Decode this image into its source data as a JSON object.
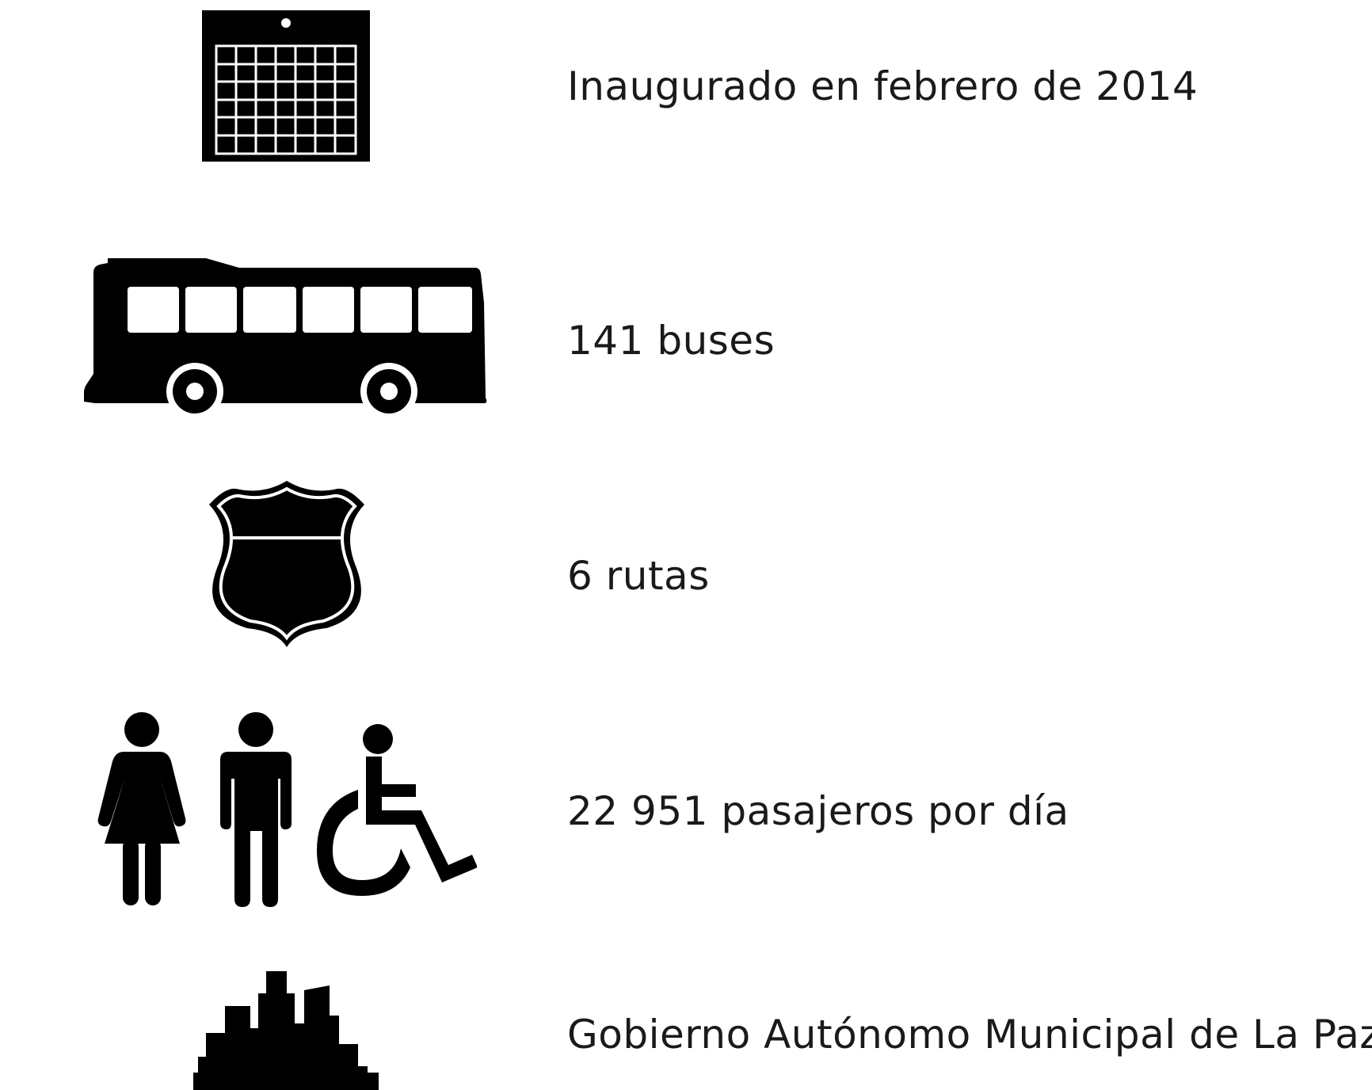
{
  "colors": {
    "background": "#ffffff",
    "icon": "#000000",
    "text": "#1a1a1a"
  },
  "rows": [
    {
      "icon": "calendar-icon",
      "text": "Inaugurado en febrero de 2014"
    },
    {
      "icon": "bus-icon",
      "text": "141 buses"
    },
    {
      "icon": "route-shield-icon",
      "text": "6 rutas"
    },
    {
      "icon": "passengers-icon",
      "text": "22 951 pasajeros por día"
    },
    {
      "icon": "city-skyline-icon",
      "text": "Gobierno Autónomo Municipal de La Paz"
    }
  ]
}
